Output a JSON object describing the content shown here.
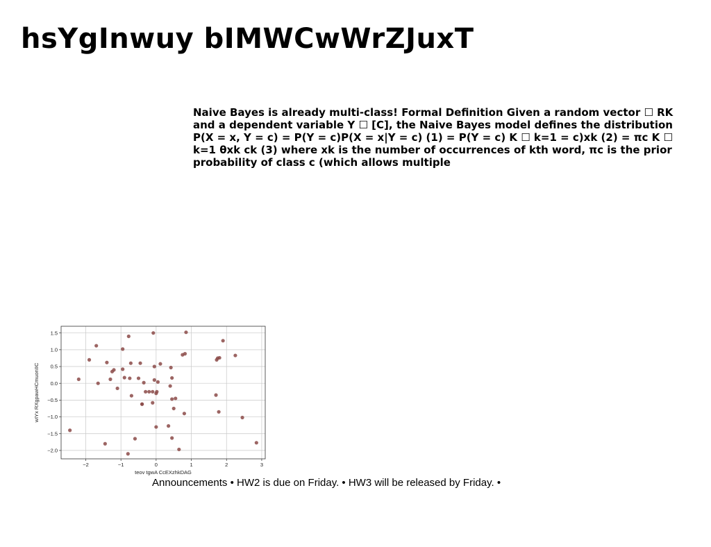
{
  "slide": {
    "title": "hsYgInwuy bIMWCwWrZJuxT",
    "body": "Naive Bayes is already multi-class! Formal Definition Given a random vector ☐ RK and a dependent variable Y ☐ [C], the Naive Bayes model defines the distribution P(X = x, Y = c) = P(Y = c)P(X = x|Y = c) (1) = P(Y = c) K ☐ k=1 = c)xk (2) = πc K ☐ k=1 θxk ck (3) where xk is the number of occurrences of kth word, πc is the prior probability of class c (which allows multiple",
    "footer": "Announcements • HW2 is due on Friday. • HW3 will be released by Friday. •"
  },
  "chart_data": {
    "type": "scatter",
    "xlabel": "teov tgwA CcEXzhkDAG",
    "ylabel": "wIYx RXgpawHCmuonIIC",
    "xlim": [
      -2.7,
      3.1
    ],
    "ylim": [
      -2.25,
      1.7
    ],
    "xticks": [
      "−2",
      "−1",
      "0",
      "1",
      "2",
      "3"
    ],
    "xtick_values": [
      -2,
      -1,
      0,
      1,
      2,
      3
    ],
    "yticks": [
      "1.5",
      "1.0",
      "0.5",
      "0.0",
      "−0.5",
      "−1.0",
      "−1.5",
      "−2.0"
    ],
    "ytick_values": [
      1.5,
      1.0,
      0.5,
      0.0,
      -0.5,
      -1.0,
      -1.5,
      -2.0
    ],
    "grid": true,
    "point_color": "#8b4a48",
    "x": [
      -2.45,
      -2.2,
      -1.9,
      -1.7,
      -1.65,
      -1.45,
      -1.4,
      -1.3,
      -1.25,
      -1.2,
      -1.1,
      -0.95,
      -0.95,
      -0.9,
      -0.8,
      -0.78,
      -0.75,
      -0.72,
      -0.7,
      -0.6,
      -0.5,
      -0.45,
      -0.4,
      -0.4,
      -0.35,
      -0.3,
      -0.2,
      -0.1,
      -0.1,
      -0.08,
      -0.05,
      -0.05,
      0.0,
      0.0,
      0.02,
      0.05,
      0.12,
      0.35,
      0.4,
      0.42,
      0.45,
      0.45,
      0.45,
      0.5,
      0.55,
      0.65,
      0.75,
      0.8,
      0.82,
      0.85,
      1.7,
      1.72,
      1.75,
      1.78,
      1.8,
      1.9,
      2.25,
      2.45,
      2.85
    ],
    "y": [
      -1.4,
      0.12,
      0.7,
      1.12,
      0.0,
      -1.8,
      0.62,
      0.12,
      0.35,
      0.4,
      -0.15,
      0.42,
      1.02,
      0.17,
      -2.1,
      1.4,
      0.15,
      0.6,
      -0.37,
      -1.65,
      0.15,
      0.6,
      -0.62,
      -0.62,
      0.02,
      -0.25,
      -0.25,
      -0.58,
      -0.25,
      1.5,
      0.5,
      0.1,
      -1.3,
      -0.3,
      -0.25,
      0.04,
      0.58,
      -1.27,
      -0.08,
      0.47,
      -1.63,
      0.16,
      -0.47,
      -0.75,
      -0.45,
      -1.97,
      0.85,
      -0.9,
      0.88,
      1.52,
      -0.35,
      0.7,
      0.75,
      -0.85,
      0.76,
      1.27,
      0.83,
      -1.02,
      -1.77
    ]
  }
}
